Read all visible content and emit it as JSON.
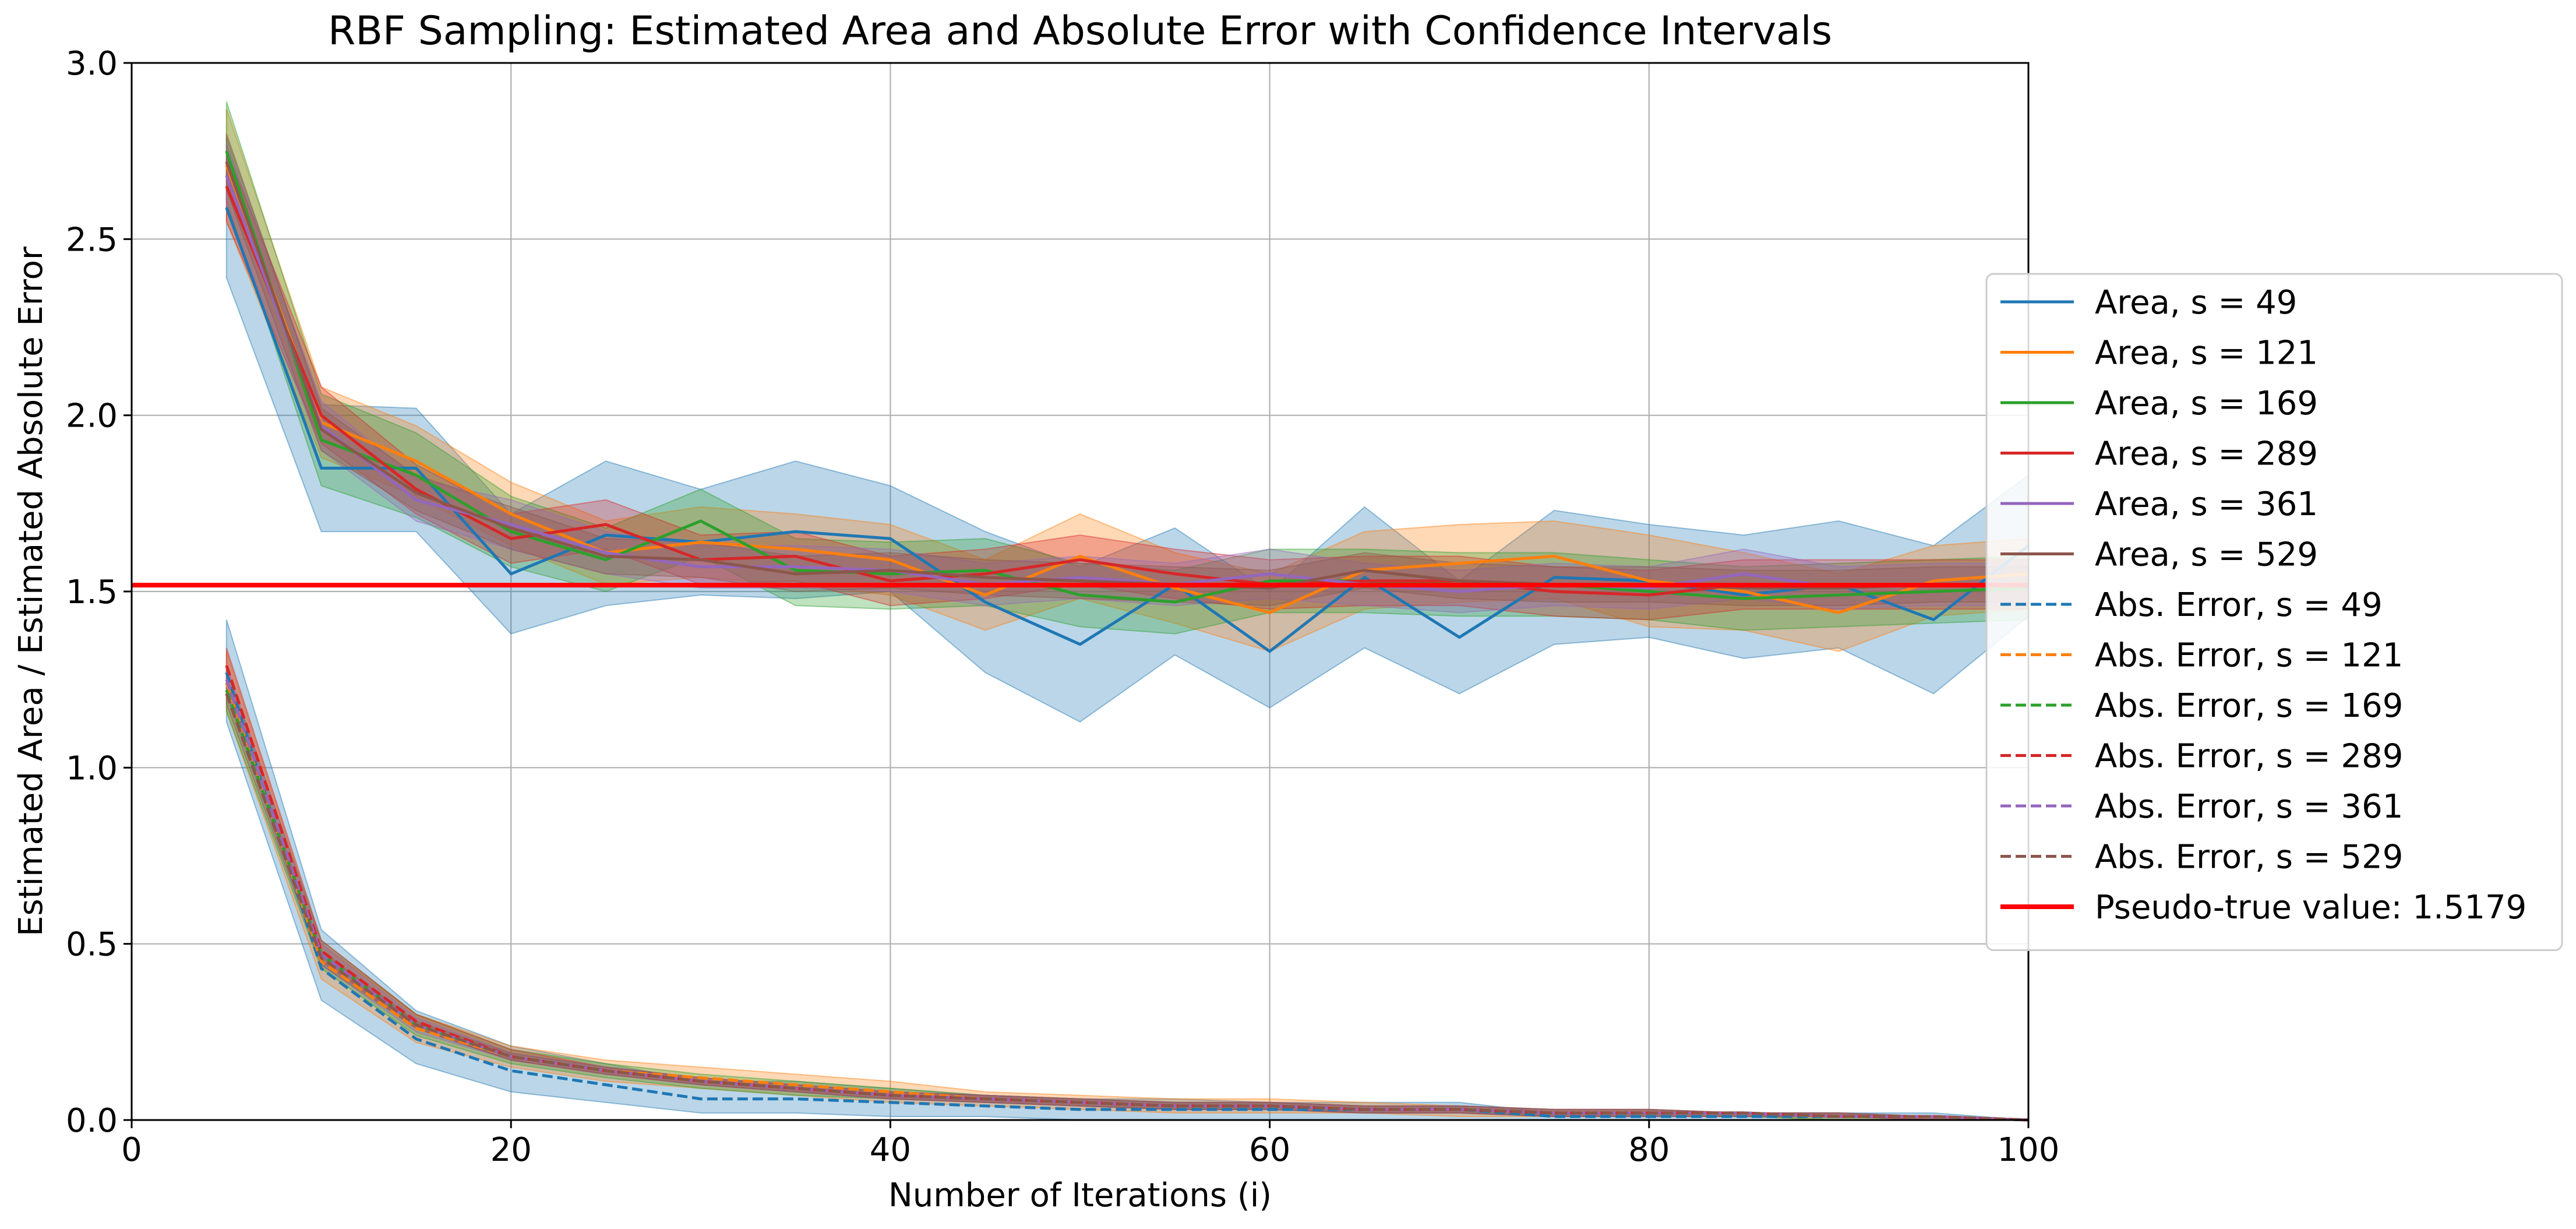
{
  "chart_data": {
    "type": "line",
    "title": "RBF Sampling: Estimated Area and Absolute Error with Confidence Intervals",
    "xlabel": "Number of Iterations (i)",
    "ylabel": "Estimated Area / Estimated Absolute Error",
    "xlim": [
      0,
      100
    ],
    "ylim": [
      0.0,
      3.0
    ],
    "xticks": [
      0,
      20,
      40,
      60,
      80,
      100
    ],
    "xtick_labels": [
      "0",
      "20",
      "40",
      "60",
      "80",
      "100"
    ],
    "yticks": [
      0.0,
      0.5,
      1.0,
      1.5,
      2.0,
      2.5,
      3.0
    ],
    "ytick_labels": [
      "0.0",
      "0.5",
      "1.0",
      "1.5",
      "2.0",
      "2.5",
      "3.0"
    ],
    "grid": true,
    "legend_position": "right",
    "x": [
      5,
      10,
      15,
      20,
      25,
      30,
      35,
      40,
      45,
      50,
      55,
      60,
      65,
      70,
      75,
      80,
      85,
      90,
      95,
      100
    ],
    "colors": {
      "s49": "#1f77b4",
      "s121": "#ff7f0e",
      "s169": "#2ca02c",
      "s289": "#d62728",
      "s361": "#9467bd",
      "s529": "#8c564b",
      "reference": "#ff0000"
    },
    "series": [
      {
        "name": "Area, s = 49",
        "style": "solid",
        "color_key": "s49",
        "values": [
          2.59,
          1.85,
          1.85,
          1.55,
          1.66,
          1.64,
          1.67,
          1.65,
          1.47,
          1.35,
          1.52,
          1.33,
          1.54,
          1.37,
          1.54,
          1.53,
          1.49,
          1.52,
          1.42,
          1.63
        ],
        "ci_low": [
          2.39,
          1.67,
          1.67,
          1.38,
          1.46,
          1.49,
          1.48,
          1.5,
          1.27,
          1.13,
          1.32,
          1.17,
          1.34,
          1.21,
          1.35,
          1.37,
          1.31,
          1.34,
          1.21,
          1.43
        ],
        "ci_high": [
          2.79,
          2.03,
          2.02,
          1.72,
          1.87,
          1.79,
          1.87,
          1.8,
          1.67,
          1.57,
          1.68,
          1.5,
          1.74,
          1.53,
          1.73,
          1.69,
          1.66,
          1.7,
          1.63,
          1.83
        ]
      },
      {
        "name": "Area, s = 121",
        "style": "solid",
        "color_key": "s121",
        "values": [
          2.71,
          1.98,
          1.87,
          1.72,
          1.61,
          1.64,
          1.62,
          1.59,
          1.49,
          1.6,
          1.51,
          1.44,
          1.56,
          1.58,
          1.6,
          1.53,
          1.5,
          1.44,
          1.53,
          1.55
        ],
        "ci_low": [
          2.55,
          1.88,
          1.77,
          1.63,
          1.52,
          1.54,
          1.52,
          1.49,
          1.39,
          1.48,
          1.41,
          1.33,
          1.45,
          1.47,
          1.48,
          1.4,
          1.39,
          1.33,
          1.43,
          1.45
        ],
        "ci_high": [
          2.87,
          2.08,
          1.97,
          1.81,
          1.7,
          1.74,
          1.72,
          1.69,
          1.59,
          1.72,
          1.61,
          1.55,
          1.67,
          1.69,
          1.7,
          1.66,
          1.61,
          1.55,
          1.63,
          1.65
        ]
      },
      {
        "name": "Area, s = 169",
        "style": "solid",
        "color_key": "s169",
        "values": [
          2.75,
          1.93,
          1.83,
          1.67,
          1.59,
          1.7,
          1.56,
          1.55,
          1.56,
          1.49,
          1.47,
          1.53,
          1.53,
          1.52,
          1.52,
          1.5,
          1.48,
          1.49,
          1.5,
          1.51
        ],
        "ci_low": [
          2.61,
          1.8,
          1.71,
          1.57,
          1.5,
          1.6,
          1.46,
          1.45,
          1.46,
          1.4,
          1.38,
          1.44,
          1.44,
          1.43,
          1.43,
          1.42,
          1.39,
          1.4,
          1.41,
          1.42
        ],
        "ci_high": [
          2.89,
          2.06,
          1.95,
          1.77,
          1.68,
          1.79,
          1.65,
          1.64,
          1.65,
          1.58,
          1.56,
          1.62,
          1.62,
          1.61,
          1.61,
          1.59,
          1.57,
          1.58,
          1.59,
          1.6
        ]
      },
      {
        "name": "Area, s = 289",
        "style": "solid",
        "color_key": "s289",
        "values": [
          2.65,
          2.0,
          1.79,
          1.65,
          1.69,
          1.59,
          1.6,
          1.53,
          1.55,
          1.59,
          1.55,
          1.52,
          1.53,
          1.53,
          1.5,
          1.49,
          1.52,
          1.52,
          1.52,
          1.52
        ],
        "ci_low": [
          2.55,
          1.92,
          1.72,
          1.58,
          1.62,
          1.52,
          1.53,
          1.46,
          1.48,
          1.52,
          1.48,
          1.45,
          1.46,
          1.46,
          1.43,
          1.42,
          1.45,
          1.45,
          1.45,
          1.45
        ],
        "ci_high": [
          2.75,
          2.08,
          1.86,
          1.72,
          1.76,
          1.66,
          1.67,
          1.6,
          1.62,
          1.66,
          1.62,
          1.59,
          1.6,
          1.6,
          1.57,
          1.56,
          1.59,
          1.59,
          1.59,
          1.59
        ]
      },
      {
        "name": "Area, s = 361",
        "style": "solid",
        "color_key": "s361",
        "values": [
          2.68,
          1.97,
          1.76,
          1.69,
          1.61,
          1.57,
          1.57,
          1.56,
          1.52,
          1.54,
          1.52,
          1.55,
          1.52,
          1.5,
          1.52,
          1.51,
          1.55,
          1.51,
          1.52,
          1.52
        ],
        "ci_low": [
          2.59,
          1.9,
          1.7,
          1.62,
          1.55,
          1.51,
          1.51,
          1.5,
          1.46,
          1.48,
          1.46,
          1.48,
          1.46,
          1.44,
          1.46,
          1.45,
          1.48,
          1.45,
          1.46,
          1.46
        ],
        "ci_high": [
          2.77,
          2.04,
          1.82,
          1.76,
          1.67,
          1.63,
          1.63,
          1.62,
          1.58,
          1.6,
          1.58,
          1.62,
          1.58,
          1.56,
          1.58,
          1.57,
          1.62,
          1.57,
          1.58,
          1.58
        ]
      },
      {
        "name": "Area, s = 529",
        "style": "solid",
        "color_key": "s529",
        "values": [
          2.72,
          1.96,
          1.78,
          1.68,
          1.6,
          1.59,
          1.55,
          1.56,
          1.54,
          1.53,
          1.52,
          1.51,
          1.56,
          1.53,
          1.52,
          1.52,
          1.51,
          1.51,
          1.52,
          1.52
        ],
        "ci_low": [
          2.64,
          1.9,
          1.73,
          1.62,
          1.55,
          1.54,
          1.5,
          1.51,
          1.49,
          1.48,
          1.47,
          1.46,
          1.51,
          1.48,
          1.47,
          1.47,
          1.46,
          1.46,
          1.47,
          1.47
        ],
        "ci_high": [
          2.8,
          2.02,
          1.83,
          1.74,
          1.65,
          1.64,
          1.6,
          1.61,
          1.59,
          1.58,
          1.57,
          1.56,
          1.61,
          1.58,
          1.57,
          1.57,
          1.56,
          1.56,
          1.57,
          1.57
        ]
      },
      {
        "name": "Abs. Error, s = 49",
        "style": "dashed",
        "color_key": "s49",
        "values": [
          1.27,
          0.43,
          0.23,
          0.14,
          0.1,
          0.06,
          0.06,
          0.05,
          0.04,
          0.03,
          0.03,
          0.03,
          0.03,
          0.03,
          0.01,
          0.01,
          0.01,
          0.01,
          0.01,
          0.0
        ],
        "ci_low": [
          1.13,
          0.34,
          0.16,
          0.08,
          0.05,
          0.02,
          0.02,
          0.01,
          0.01,
          0.0,
          0.0,
          0.0,
          0.0,
          0.0,
          0.0,
          0.0,
          0.0,
          0.0,
          0.0,
          0.0
        ],
        "ci_high": [
          1.42,
          0.54,
          0.31,
          0.21,
          0.16,
          0.11,
          0.11,
          0.09,
          0.07,
          0.06,
          0.06,
          0.05,
          0.05,
          0.05,
          0.02,
          0.02,
          0.02,
          0.02,
          0.02,
          0.0
        ]
      },
      {
        "name": "Abs. Error, s = 121",
        "style": "dashed",
        "color_key": "s121",
        "values": [
          1.24,
          0.45,
          0.26,
          0.18,
          0.14,
          0.12,
          0.1,
          0.08,
          0.06,
          0.05,
          0.04,
          0.04,
          0.03,
          0.03,
          0.02,
          0.02,
          0.02,
          0.01,
          0.01,
          0.0
        ],
        "ci_low": [
          1.16,
          0.4,
          0.22,
          0.15,
          0.11,
          0.09,
          0.07,
          0.05,
          0.04,
          0.03,
          0.02,
          0.02,
          0.02,
          0.01,
          0.01,
          0.01,
          0.01,
          0.0,
          0.0,
          0.0
        ],
        "ci_high": [
          1.33,
          0.5,
          0.3,
          0.21,
          0.17,
          0.15,
          0.13,
          0.11,
          0.08,
          0.07,
          0.06,
          0.06,
          0.05,
          0.04,
          0.03,
          0.03,
          0.02,
          0.02,
          0.01,
          0.0
        ]
      },
      {
        "name": "Abs. Error, s = 169",
        "style": "dashed",
        "color_key": "s169",
        "values": [
          1.22,
          0.47,
          0.27,
          0.18,
          0.14,
          0.11,
          0.09,
          0.07,
          0.06,
          0.05,
          0.04,
          0.04,
          0.03,
          0.03,
          0.02,
          0.02,
          0.02,
          0.01,
          0.01,
          0.0
        ],
        "ci_low": [
          1.16,
          0.43,
          0.24,
          0.16,
          0.12,
          0.09,
          0.07,
          0.06,
          0.05,
          0.04,
          0.03,
          0.03,
          0.02,
          0.02,
          0.01,
          0.01,
          0.01,
          0.0,
          0.0,
          0.0
        ],
        "ci_high": [
          1.28,
          0.51,
          0.3,
          0.2,
          0.16,
          0.13,
          0.11,
          0.09,
          0.07,
          0.06,
          0.05,
          0.05,
          0.04,
          0.04,
          0.03,
          0.03,
          0.02,
          0.02,
          0.01,
          0.0
        ]
      },
      {
        "name": "Abs. Error, s = 289",
        "style": "dashed",
        "color_key": "s289",
        "values": [
          1.29,
          0.48,
          0.28,
          0.18,
          0.14,
          0.11,
          0.09,
          0.07,
          0.06,
          0.05,
          0.04,
          0.04,
          0.03,
          0.03,
          0.02,
          0.02,
          0.02,
          0.01,
          0.01,
          0.0
        ],
        "ci_low": [
          1.24,
          0.45,
          0.26,
          0.17,
          0.13,
          0.1,
          0.08,
          0.06,
          0.05,
          0.04,
          0.03,
          0.03,
          0.02,
          0.02,
          0.01,
          0.01,
          0.01,
          0.01,
          0.0,
          0.0
        ],
        "ci_high": [
          1.34,
          0.51,
          0.3,
          0.2,
          0.15,
          0.12,
          0.1,
          0.08,
          0.07,
          0.06,
          0.05,
          0.05,
          0.04,
          0.04,
          0.03,
          0.03,
          0.02,
          0.02,
          0.01,
          0.0
        ]
      },
      {
        "name": "Abs. Error, s = 361",
        "style": "dashed",
        "color_key": "s361",
        "values": [
          1.25,
          0.47,
          0.27,
          0.18,
          0.14,
          0.11,
          0.09,
          0.07,
          0.06,
          0.05,
          0.04,
          0.04,
          0.03,
          0.03,
          0.02,
          0.02,
          0.02,
          0.01,
          0.01,
          0.0
        ],
        "ci_low": [
          1.21,
          0.44,
          0.25,
          0.17,
          0.13,
          0.1,
          0.08,
          0.06,
          0.05,
          0.04,
          0.03,
          0.03,
          0.02,
          0.02,
          0.01,
          0.01,
          0.01,
          0.01,
          0.0,
          0.0
        ],
        "ci_high": [
          1.29,
          0.5,
          0.29,
          0.19,
          0.15,
          0.12,
          0.1,
          0.08,
          0.07,
          0.06,
          0.05,
          0.05,
          0.04,
          0.04,
          0.03,
          0.03,
          0.02,
          0.02,
          0.01,
          0.0
        ]
      },
      {
        "name": "Abs. Error, s = 529",
        "style": "dashed",
        "color_key": "s529",
        "values": [
          1.21,
          0.46,
          0.27,
          0.18,
          0.14,
          0.11,
          0.09,
          0.07,
          0.06,
          0.05,
          0.04,
          0.04,
          0.03,
          0.03,
          0.02,
          0.02,
          0.02,
          0.01,
          0.01,
          0.0
        ],
        "ci_low": [
          1.18,
          0.44,
          0.26,
          0.17,
          0.13,
          0.1,
          0.08,
          0.06,
          0.05,
          0.04,
          0.03,
          0.03,
          0.02,
          0.02,
          0.01,
          0.01,
          0.01,
          0.01,
          0.0,
          0.0
        ],
        "ci_high": [
          1.24,
          0.48,
          0.28,
          0.19,
          0.15,
          0.12,
          0.1,
          0.08,
          0.07,
          0.06,
          0.05,
          0.05,
          0.04,
          0.04,
          0.03,
          0.03,
          0.02,
          0.02,
          0.01,
          0.0
        ]
      }
    ],
    "reference_line": {
      "name": "Pseudo-true value: 1.5179",
      "value": 1.5179,
      "color_key": "reference"
    }
  }
}
